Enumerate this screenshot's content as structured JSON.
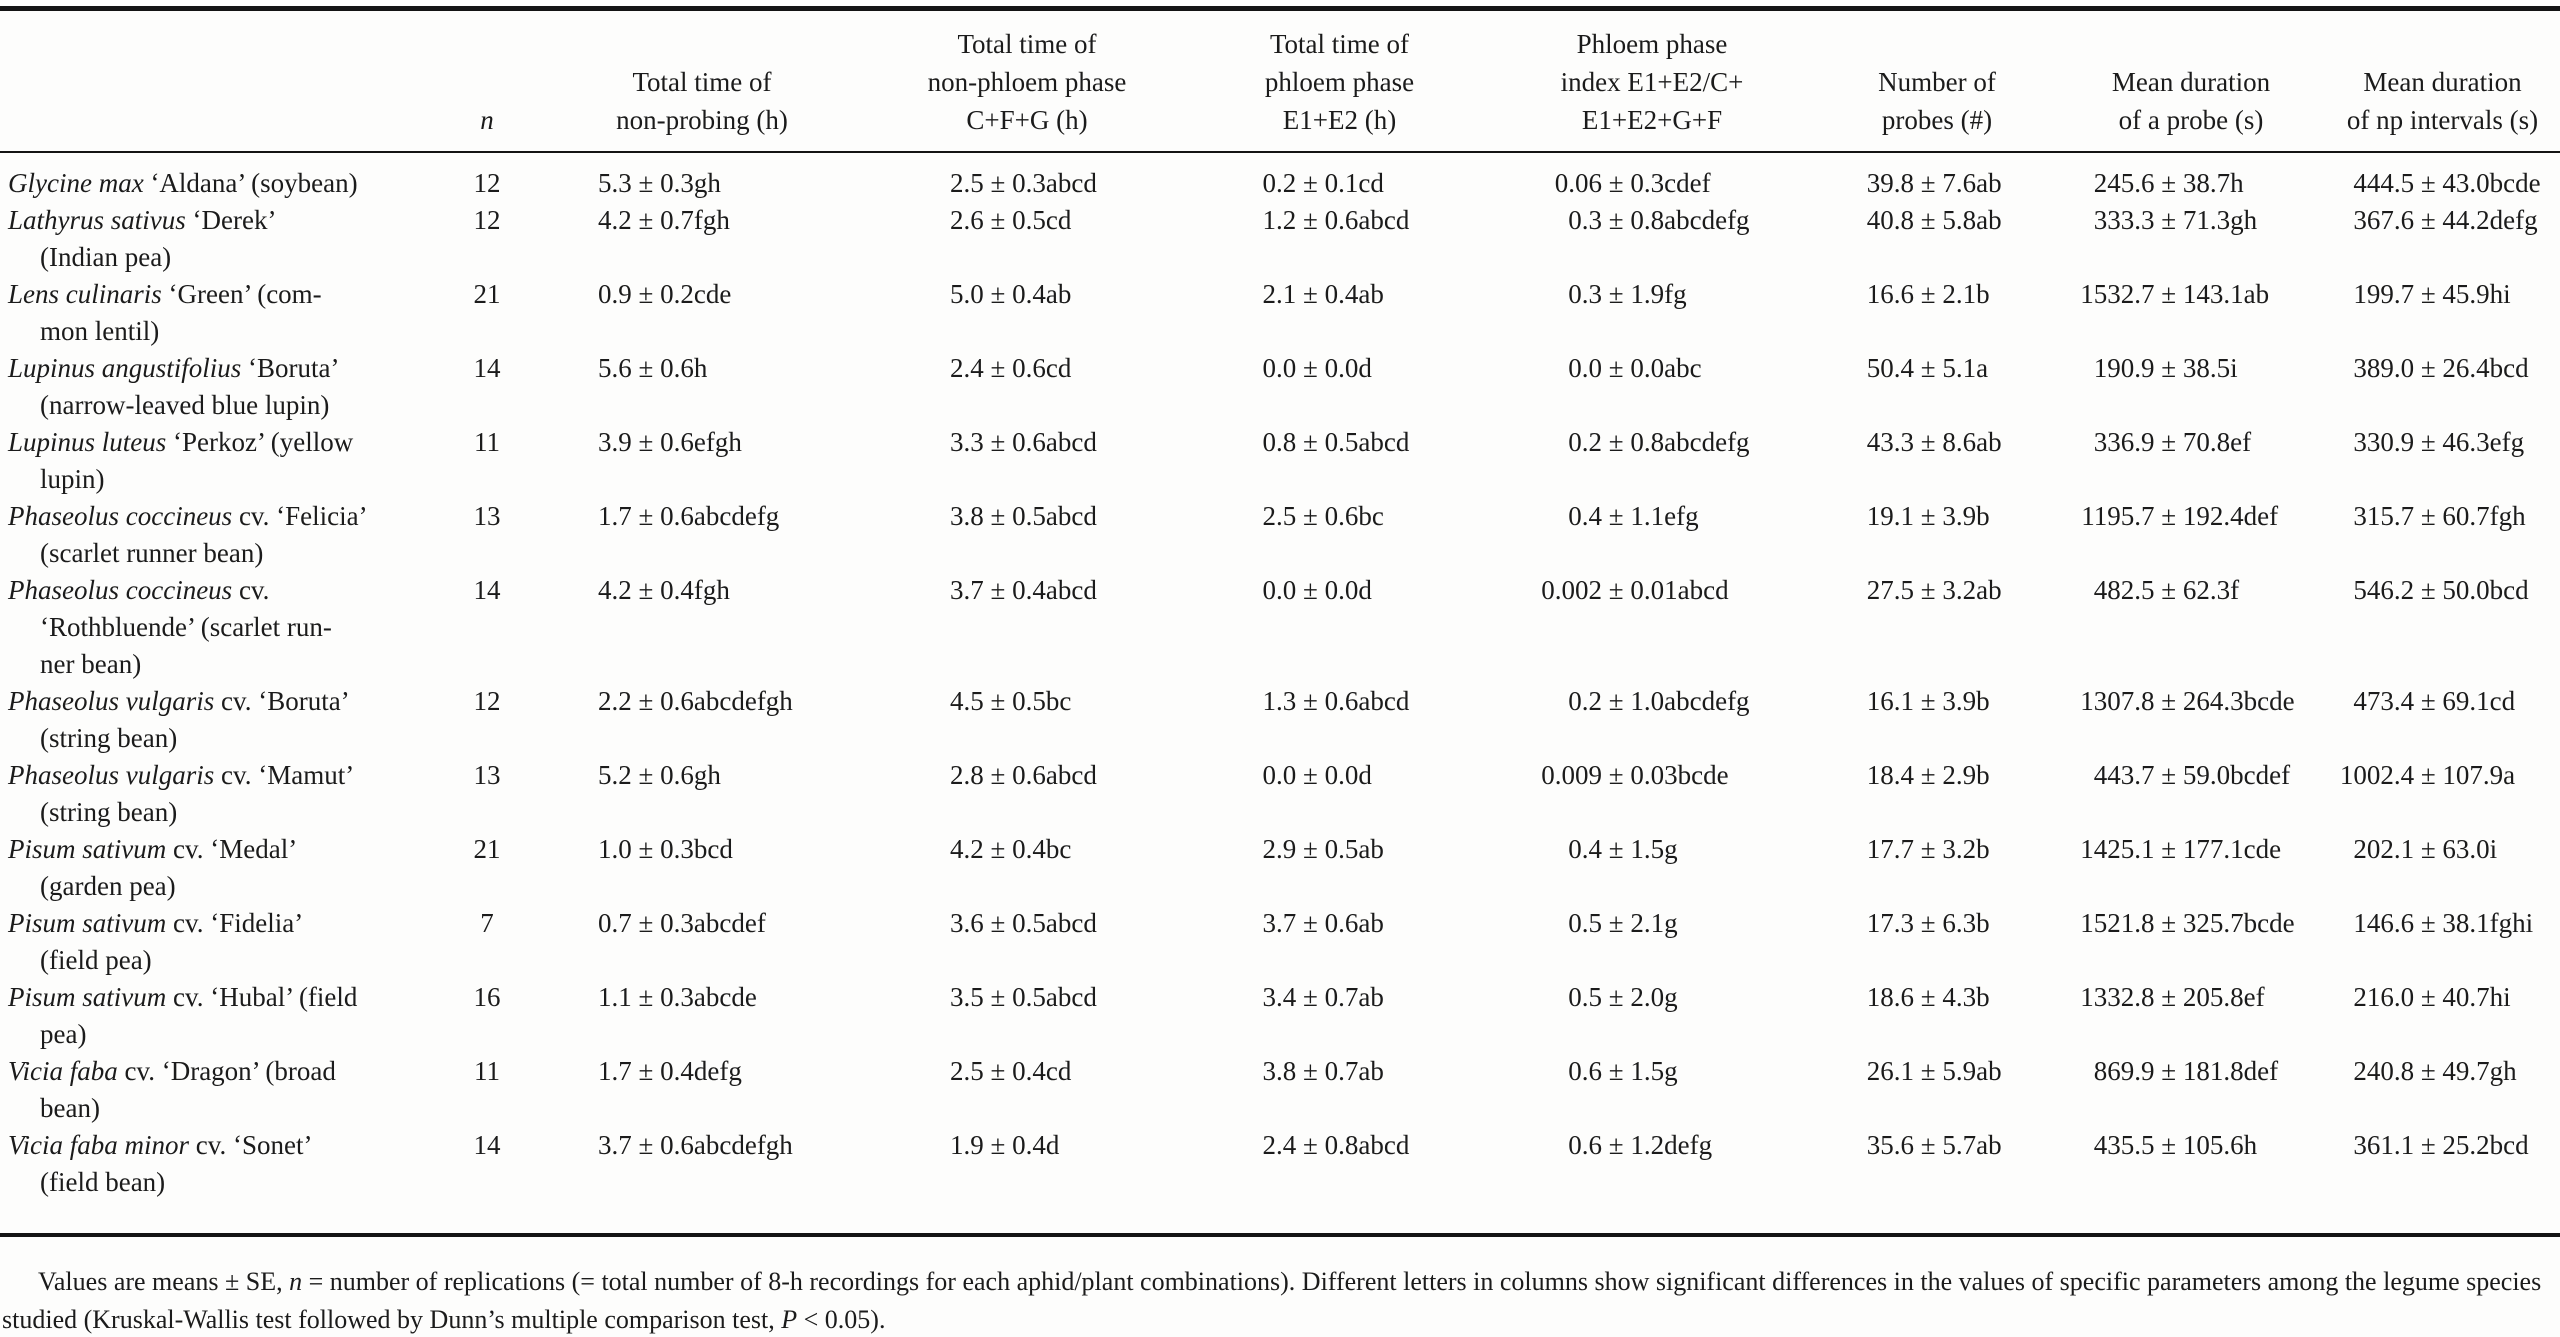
{
  "table": {
    "headers": [
      {
        "text": "",
        "italic": false
      },
      {
        "text": "n",
        "italic": true
      },
      {
        "text": "Total time of\nnon-probing (h)",
        "italic": false
      },
      {
        "text": "Total time of\nnon-phloem phase\nC+F+G (h)",
        "italic": false
      },
      {
        "text": "Total time of\nphloem phase\nE1+E2 (h)",
        "italic": false
      },
      {
        "text": "Phloem phase\nindex E1+E2/C+\nE1+E2+G+F",
        "italic": false
      },
      {
        "text": "Number of\nprobes (#)",
        "italic": false
      },
      {
        "text": "Mean duration\nof a probe (s)",
        "italic": false
      },
      {
        "text": "Mean duration\nof np intervals (s)",
        "italic": false
      }
    ],
    "rows": [
      {
        "latin": "Glycine max",
        "rest": "‘Aldana’ (soybean)",
        "n": "12",
        "values": [
          "5.3 ± 0.3gh",
          "2.5 ± 0.3abcd",
          "0.2 ± 0.1cd",
          "0.06 ± 0.3cdef",
          "39.8 ± 7.6ab",
          "245.6 ± 38.7h",
          "444.5 ± 43.0bcde"
        ]
      },
      {
        "latin": "Lathyrus sativus",
        "rest": "‘Derek’\n(Indian pea)",
        "n": "12",
        "values": [
          "4.2 ± 0.7fgh",
          "2.6 ± 0.5cd",
          "1.2 ± 0.6abcd",
          "0.3 ± 0.8abcdefg",
          "40.8 ± 5.8ab",
          "333.3 ± 71.3gh",
          "367.6 ± 44.2defg"
        ]
      },
      {
        "latin": "Lens culinaris",
        "rest": "‘Green’ (com-\nmon lentil)",
        "n": "21",
        "values": [
          "0.9 ± 0.2cde",
          "5.0 ± 0.4ab",
          "2.1 ± 0.4ab",
          "0.3 ± 1.9fg",
          "16.6 ± 2.1b",
          "1532.7 ± 143.1ab",
          "199.7 ± 45.9hi"
        ]
      },
      {
        "latin": "Lupinus angustifolius",
        "rest": "‘Boruta’\n(narrow-leaved blue lupin)",
        "n": "14",
        "values": [
          "5.6 ± 0.6h",
          "2.4 ± 0.6cd",
          "0.0 ± 0.0d",
          "0.0 ± 0.0abc",
          "50.4 ± 5.1a",
          "190.9 ± 38.5i",
          "389.0 ± 26.4bcd"
        ]
      },
      {
        "latin": "Lupinus luteus",
        "rest": "‘Perkoz’ (yellow\nlupin)",
        "n": "11",
        "values": [
          "3.9 ± 0.6efgh",
          "3.3 ± 0.6abcd",
          "0.8 ± 0.5abcd",
          "0.2 ± 0.8abcdefg",
          "43.3 ± 8.6ab",
          "336.9 ± 70.8ef",
          "330.9 ± 46.3efg"
        ]
      },
      {
        "latin": "Phaseolus coccineus",
        "rest": "cv. ‘Felicia’\n(scarlet runner bean)",
        "n": "13",
        "values": [
          "1.7 ± 0.6abcdefg",
          "3.8 ± 0.5abcd",
          "2.5 ± 0.6bc",
          "0.4 ± 1.1efg",
          "19.1 ± 3.9b",
          "1195.7 ± 192.4def",
          "315.7 ± 60.7fgh"
        ]
      },
      {
        "latin": "Phaseolus coccineus",
        "rest": "cv.\n‘Rothbluende’ (scarlet run-\nner bean)",
        "n": "14",
        "values": [
          "4.2 ± 0.4fgh",
          "3.7 ± 0.4abcd",
          "0.0 ± 0.0d",
          "0.002 ± 0.01abcd",
          "27.5 ± 3.2ab",
          "482.5 ± 62.3f",
          "546.2 ± 50.0bcd"
        ]
      },
      {
        "latin": "Phaseolus vulgaris",
        "rest": "cv. ‘Boruta’\n(string bean)",
        "n": "12",
        "values": [
          "2.2 ± 0.6abcdefgh",
          "4.5 ± 0.5bc",
          "1.3 ± 0.6abcd",
          "0.2 ± 1.0abcdefg",
          "16.1 ± 3.9b",
          "1307.8 ± 264.3bcde",
          "473.4 ± 69.1cd"
        ]
      },
      {
        "latin": "Phaseolus vulgaris",
        "rest": "cv. ‘Mamut’\n(string bean)",
        "n": "13",
        "values": [
          "5.2 ± 0.6gh",
          "2.8 ± 0.6abcd",
          "0.0 ± 0.0d",
          "0.009 ± 0.03bcde",
          "18.4 ± 2.9b",
          "443.7 ± 59.0bcdef",
          "1002.4 ± 107.9a"
        ]
      },
      {
        "latin": "Pisum sativum",
        "rest": "cv. ‘Medal’\n(garden pea)",
        "n": "21",
        "values": [
          "1.0 ± 0.3bcd",
          "4.2 ± 0.4bc",
          "2.9 ± 0.5ab",
          "0.4 ± 1.5g",
          "17.7 ± 3.2b",
          "1425.1 ± 177.1cde",
          "202.1 ± 63.0i"
        ]
      },
      {
        "latin": "Pisum sativum",
        "rest": "cv. ‘Fidelia’\n(field pea)",
        "n": "7",
        "values": [
          "0.7 ± 0.3abcdef",
          "3.6 ± 0.5abcd",
          "3.7 ± 0.6ab",
          "0.5 ± 2.1g",
          "17.3 ± 6.3b",
          "1521.8 ± 325.7bcde",
          "146.6 ± 38.1fghi"
        ]
      },
      {
        "latin": "Pisum sativum",
        "rest": "cv. ‘Hubal’ (field\npea)",
        "n": "16",
        "values": [
          "1.1 ± 0.3abcde",
          "3.5 ± 0.5abcd",
          "3.4 ± 0.7ab",
          "0.5 ± 2.0g",
          "18.6 ± 4.3b",
          "1332.8 ± 205.8ef",
          "216.0 ± 40.7hi"
        ]
      },
      {
        "latin": "Vicia faba",
        "rest": "cv. ‘Dragon’ (broad\nbean)",
        "n": "11",
        "values": [
          "1.7 ± 0.4defg",
          "2.5 ± 0.4cd",
          "3.8 ± 0.7ab",
          "0.6 ± 1.5g",
          "26.1 ± 5.9ab",
          "869.9 ± 181.8def",
          "240.8 ± 49.7gh"
        ]
      },
      {
        "latin": "Vicia faba minor",
        "rest": "cv. ‘Sonet’\n(field bean)",
        "n": "14",
        "values": [
          "3.7 ± 0.6abcdefgh",
          "1.9 ± 0.4d",
          "2.4 ± 0.8abcd",
          "0.6 ± 1.2defg",
          "35.6 ± 5.7ab",
          "435.5 ± 105.6h",
          "361.1 ± 25.2bcd"
        ]
      }
    ]
  },
  "footnote": {
    "segments": [
      {
        "text": "Values are means ± SE, ",
        "italic": false
      },
      {
        "text": "n",
        "italic": true
      },
      {
        "text": " = number of replications (= total number of 8-h recordings for each aphid/plant combinations). Different letters in columns show significant differences in the values of specific parameters among the legume species studied (Kruskal-Wallis test followed by Dunn’s multiple comparison test, ",
        "italic": false
      },
      {
        "text": "P",
        "italic": true
      },
      {
        "text": " < 0.05).",
        "italic": false
      }
    ]
  }
}
